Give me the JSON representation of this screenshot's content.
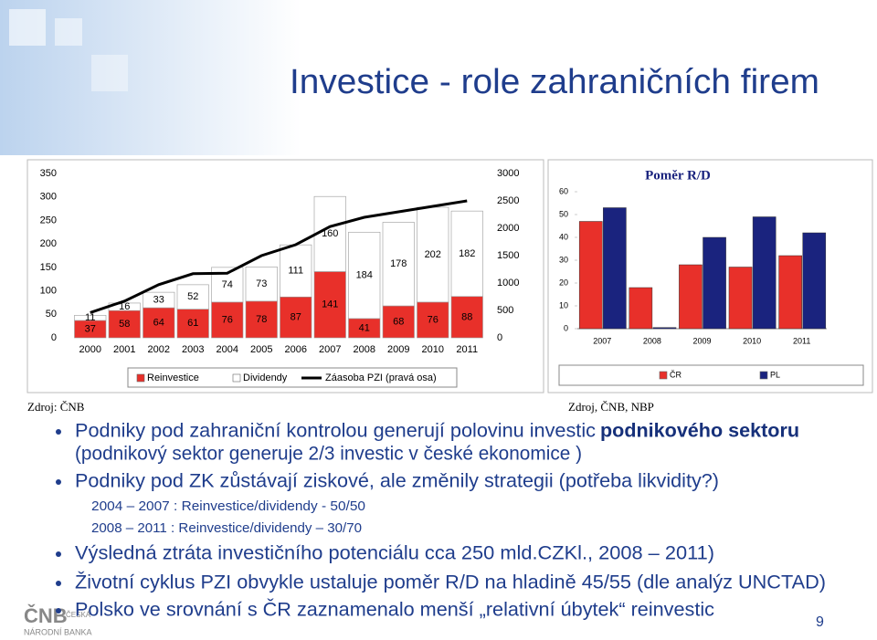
{
  "slide": {
    "title": "Investice - role zahraničních firem",
    "source_left": "Zdroj: ČNB",
    "source_right": "Zdroj, ČNB, NBP",
    "bullet_1": {
      "text": "Podniky pod zahraniční kontrolou generují polovinu investic",
      "bold": "podnikového sektoru",
      "cont": "(podnikový sektor generuje 2/3 investic v české ekonomice )"
    },
    "bullet_2": "Podniky pod ZK zůstávají ziskové, ale změnily strategii (potřeba likvidity?)",
    "sub_bullets": [
      "2004 – 2007 : Reinvestice/dividendy  - 50/50",
      "2008 – 2011 : Reinvestice/dividendy – 30/70"
    ],
    "bullets_rest": [
      "Výsledná ztráta investičního potenciálu cca 250 mld.CZKl., 2008 – 2011)",
      "Životní cyklus PZI obvykle ustaluje poměr R/D na hladině 45/55 (dle analýz UNCTAD)",
      "Polsko ve srovnání s ČR zaznamenalo menší „relativní úbytek“ reinvestic"
    ],
    "page_number": "9",
    "logo": [
      "ČNB",
      "ČESKÁ",
      "NÁRODNÍ BANKA"
    ]
  },
  "chart_data": [
    {
      "type": "bar",
      "stacked": true,
      "categories": [
        "2000",
        "2001",
        "2002",
        "2003",
        "2004",
        "2005",
        "2006",
        "2007",
        "2008",
        "2009",
        "2010",
        "2011"
      ],
      "series": [
        {
          "name": "Reinvestice",
          "color": "#e8302a",
          "values": [
            37,
            58,
            64,
            61,
            76,
            78,
            87,
            141,
            41,
            68,
            76,
            88
          ]
        },
        {
          "name": "Dividendy",
          "color": "#ffffff",
          "values": [
            11,
            16,
            33,
            52,
            74,
            73,
            111,
            160,
            184,
            178,
            202,
            182
          ]
        },
        {
          "name": "Záasoba PZI (pravá osa)",
          "type": "line",
          "axis": "y2",
          "color": "#000000",
          "values": [
            460,
            670,
            970,
            1170,
            1180,
            1500,
            1700,
            2030,
            2200,
            2300,
            2400,
            2500
          ]
        }
      ],
      "ylim": [
        0,
        350
      ],
      "yticks": [
        0,
        50,
        100,
        150,
        200,
        250,
        300,
        350
      ],
      "y2lim": [
        0,
        3000
      ],
      "y2ticks": [
        0,
        500,
        1000,
        1500,
        2000,
        2500,
        3000
      ]
    },
    {
      "type": "bar",
      "title": "Poměr R/D",
      "categories": [
        "2007",
        "2008",
        "2009",
        "2010",
        "2011"
      ],
      "series": [
        {
          "name": "ČR",
          "color": "#e8302a",
          "values": [
            47,
            18,
            28,
            27,
            32
          ]
        },
        {
          "name": "PL",
          "color": "#1a237e",
          "values": [
            53,
            0.5,
            40,
            49,
            42
          ]
        }
      ],
      "ylim": [
        0,
        60
      ],
      "yticks": [
        0,
        10,
        20,
        30,
        40,
        50,
        60
      ]
    }
  ]
}
